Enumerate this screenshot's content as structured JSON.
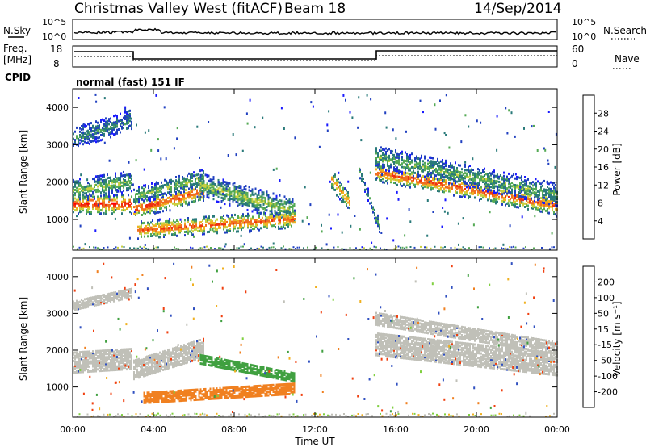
{
  "header": {
    "title": "Christmas Valley West (fitACF)",
    "beam": "Beam 18",
    "date": "14/Sep/2014"
  },
  "param_panel": {
    "nsky_label": "N.Sky",
    "nsky_ticks": [
      "10^5",
      "10^0"
    ],
    "nsearch_label": "N.Search",
    "nsearch_ticks": [
      "10^5",
      "10^0"
    ],
    "freq_label": [
      "Freq.",
      "[MHz]"
    ],
    "freq_ticks": [
      "18",
      "8"
    ],
    "nave_label": "Nave",
    "nave_ticks": [
      "60",
      "0"
    ],
    "cpid_label": "CPID",
    "cpid_text": "normal (fast) 151 IF"
  },
  "colors": {
    "power_scale": [
      "#1a1aff",
      "#2040c0",
      "#2a7a7a",
      "#55aa55",
      "#c8d040",
      "#f0b020",
      "#f07020",
      "#f03010",
      "#ff0000"
    ],
    "velocity_scale": [
      "#ff0000",
      "#f04010",
      "#f08020",
      "#f0b020",
      "#c0c0b8",
      "#80d040",
      "#40a040",
      "#3050c0",
      "#0000ff"
    ]
  },
  "chart_data": [
    {
      "type": "heatmap",
      "name": "power",
      "ylabel": "Slant Range [km]",
      "yticks": [
        "4000",
        "3000",
        "2000",
        "1000"
      ],
      "ylim": [
        180,
        4500
      ],
      "xlim": [
        0,
        24
      ],
      "colorbar_label": "Power [dB]",
      "colorbar_ticks": [
        "28",
        "24",
        "20",
        "16",
        "12",
        "8",
        "4"
      ],
      "colorbar_range": [
        0,
        32
      ],
      "bands": [
        {
          "t0": 0.0,
          "t1": 2.9,
          "r0": 1450,
          "r1": 1450,
          "w": 260,
          "p": 28
        },
        {
          "t0": 0.0,
          "t1": 2.9,
          "r0": 1800,
          "r1": 2050,
          "w": 300,
          "p": 14
        },
        {
          "t0": 0.0,
          "t1": 2.9,
          "r0": 3200,
          "r1": 3700,
          "w": 280,
          "p": 10
        },
        {
          "t0": 3.0,
          "t1": 6.5,
          "r0": 1300,
          "r1": 1800,
          "w": 250,
          "p": 26
        },
        {
          "t0": 3.0,
          "t1": 6.5,
          "r0": 1650,
          "r1": 2150,
          "w": 230,
          "p": 14
        },
        {
          "t0": 6.3,
          "t1": 11.0,
          "r0": 1950,
          "r1": 1250,
          "w": 320,
          "p": 15
        },
        {
          "t0": 3.2,
          "t1": 11.0,
          "r0": 750,
          "r1": 1050,
          "w": 230,
          "p": 25
        },
        {
          "t0": 12.8,
          "t1": 13.7,
          "r0": 2100,
          "r1": 1500,
          "w": 260,
          "p": 22
        },
        {
          "t0": 14.2,
          "t1": 15.2,
          "r0": 2300,
          "r1": 800,
          "w": 160,
          "p": 12
        },
        {
          "t0": 15.0,
          "t1": 24.0,
          "r0": 2300,
          "r1": 1400,
          "w": 240,
          "p": 26
        },
        {
          "t0": 15.0,
          "t1": 24.0,
          "r0": 2700,
          "r1": 1700,
          "w": 300,
          "p": 13
        }
      ]
    },
    {
      "type": "heatmap",
      "name": "velocity",
      "ylabel": "Slant Range [km]",
      "yticks": [
        "4000",
        "3000",
        "2000",
        "1000"
      ],
      "ylim": [
        180,
        4500
      ],
      "xlim": [
        0,
        24
      ],
      "xlabel": "Time UT",
      "xticks": [
        "00:00",
        "04:00",
        "08:00",
        "12:00",
        "16:00",
        "20:00",
        "00:00"
      ],
      "colorbar_label": "Velocity [m s⁻¹]",
      "colorbar_ticks": [
        "200",
        "100",
        "50",
        "15",
        "-15",
        "-50",
        "-100",
        "-200"
      ],
      "bands": [
        {
          "t0": 0.0,
          "t1": 2.9,
          "r0": 1700,
          "r1": 1800,
          "w": 550,
          "v": 0
        },
        {
          "t0": 0.0,
          "t1": 2.9,
          "r0": 3250,
          "r1": 3600,
          "w": 250,
          "v": 0
        },
        {
          "t0": 3.0,
          "t1": 6.5,
          "r0": 1500,
          "r1": 2100,
          "w": 500,
          "v": 0
        },
        {
          "t0": 6.3,
          "t1": 11.0,
          "r0": 1800,
          "r1": 1300,
          "w": 260,
          "v": 60
        },
        {
          "t0": 3.5,
          "t1": 11.0,
          "r0": 750,
          "r1": 1000,
          "w": 300,
          "v": -60
        },
        {
          "t0": 15.0,
          "t1": 24.0,
          "r0": 2200,
          "r1": 1650,
          "w": 600,
          "v": 0
        },
        {
          "t0": 15.0,
          "t1": 24.0,
          "r0": 2900,
          "r1": 2100,
          "w": 350,
          "v": 0
        }
      ]
    }
  ]
}
